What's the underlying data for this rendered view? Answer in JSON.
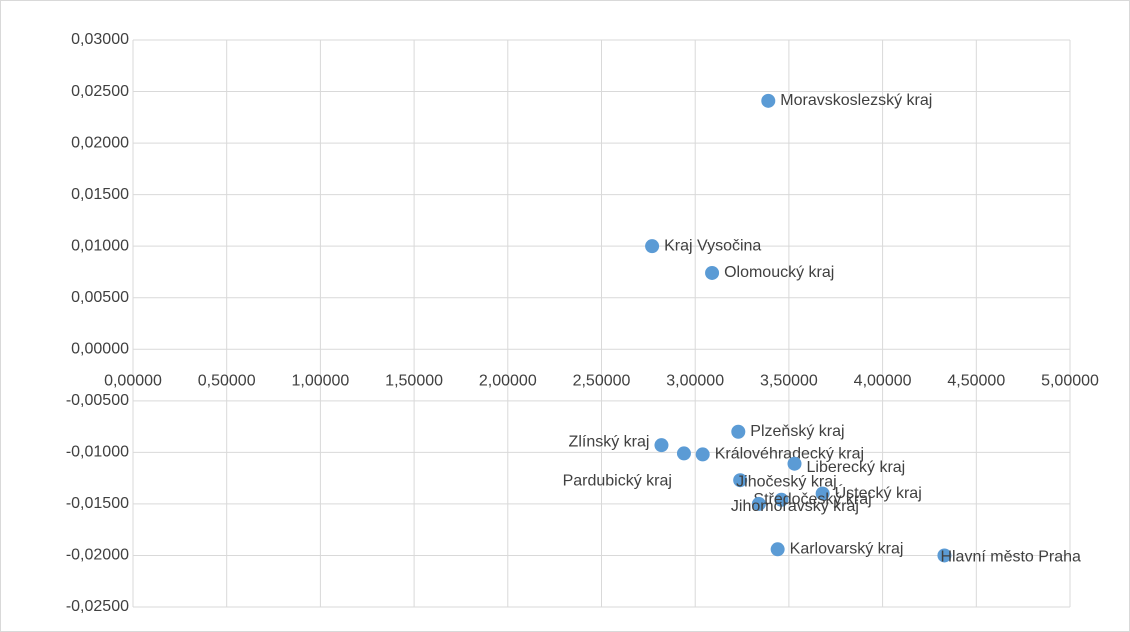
{
  "chart_data": {
    "type": "scatter",
    "color": "#5b9bd5",
    "grid": true,
    "point_labels": [
      "Moravskoslezský kraj",
      "Kraj Vysočina",
      "Olomoucký kraj",
      "Plzeňský kraj",
      "Zlínský kraj",
      "Pardubický kraj",
      "Královéhradecký kraj",
      "Liberecký kraj",
      "Jihočeský kraj",
      "Ústecký kraj",
      "Středočeský kraj",
      "Jihomoravský kraj",
      "Karlovarský kraj",
      "Hlavní město Praha"
    ],
    "x": [
      3.39,
      2.77,
      3.09,
      3.23,
      2.82,
      2.94,
      3.04,
      3.53,
      3.24,
      3.68,
      3.46,
      3.34,
      3.44,
      4.33
    ],
    "values": [
      0.0241,
      0.01,
      0.0074,
      -0.008,
      -0.0093,
      -0.0101,
      -0.0102,
      -0.0111,
      -0.0127,
      -0.014,
      -0.0146,
      -0.015,
      -0.0194,
      -0.02
    ],
    "xlim": [
      0,
      5
    ],
    "ylim": [
      -0.025,
      0.03
    ],
    "xticks": [
      {
        "value": 0,
        "label": "0,00000"
      },
      {
        "value": 0.5,
        "label": "0,50000"
      },
      {
        "value": 1,
        "label": "1,00000"
      },
      {
        "value": 1.5,
        "label": "1,50000"
      },
      {
        "value": 2,
        "label": "2,00000"
      },
      {
        "value": 2.5,
        "label": "2,50000"
      },
      {
        "value": 3,
        "label": "3,00000"
      },
      {
        "value": 3.5,
        "label": "3,50000"
      },
      {
        "value": 4,
        "label": "4,00000"
      },
      {
        "value": 4.5,
        "label": "4,50000"
      },
      {
        "value": 5,
        "label": "5,00000"
      }
    ],
    "yticks": [
      {
        "value": -0.025,
        "label": "-0,02500"
      },
      {
        "value": -0.02,
        "label": "-0,02000"
      },
      {
        "value": -0.015,
        "label": "-0,01500"
      },
      {
        "value": -0.01,
        "label": "-0,01000"
      },
      {
        "value": -0.005,
        "label": "-0,00500"
      },
      {
        "value": 0,
        "label": "0,00000"
      },
      {
        "value": 0.005,
        "label": "0,00500"
      },
      {
        "value": 0.01,
        "label": "0,01000"
      },
      {
        "value": 0.015,
        "label": "0,01500"
      },
      {
        "value": 0.02,
        "label": "0,02000"
      },
      {
        "value": 0.025,
        "label": "0,02500"
      },
      {
        "value": 0.03,
        "label": "0,03000"
      }
    ]
  }
}
